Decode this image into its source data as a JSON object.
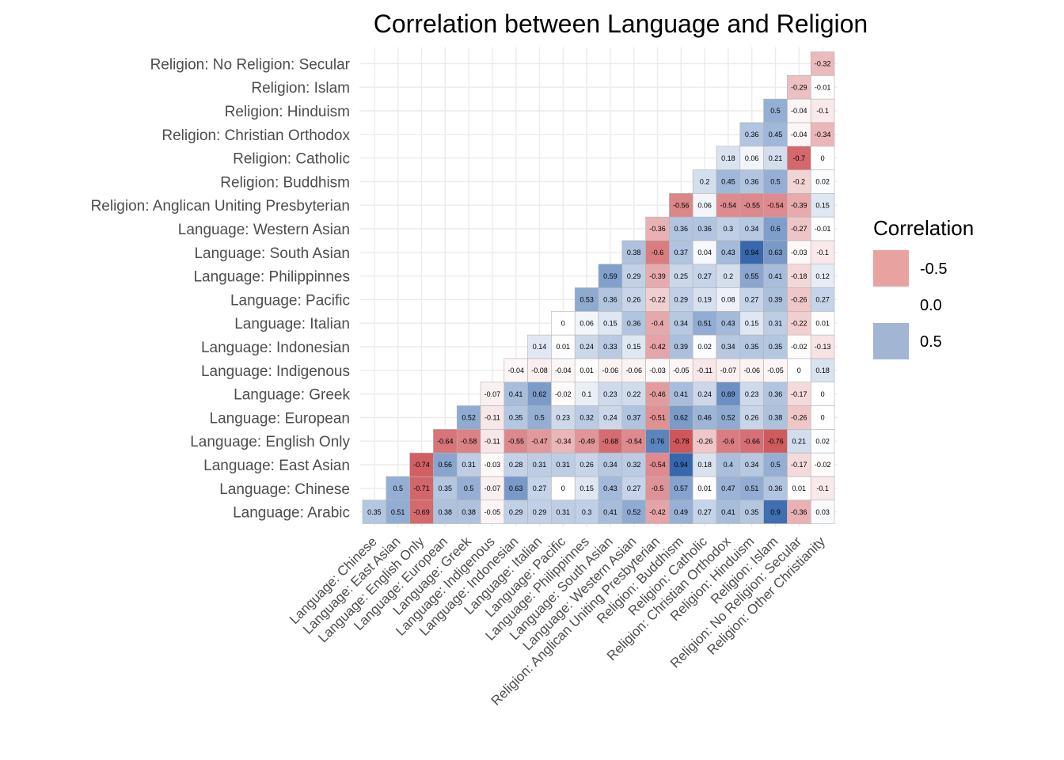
{
  "chart_data": {
    "type": "heatmap",
    "title": "Correlation between Language and Religion",
    "x_labels": [
      "Language: Chinese",
      "Language: East Asian",
      "Language: English Only",
      "Language: European",
      "Language: Greek",
      "Language: Indigenous",
      "Language: Indonesian",
      "Language: Italian",
      "Language: Pacific",
      "Language: Philippinnes",
      "Language: South Asian",
      "Language: Western Asian",
      "Religion: Anglican Uniting Presbyterian",
      "Religion: Buddhism",
      "Religion: Catholic",
      "Religion: Christian Orthodox",
      "Religion: Hinduism",
      "Religion: Islam",
      "Religion: No Religion: Secular",
      "Religion: Other Christianity"
    ],
    "y_labels": [
      "Language: Arabic",
      "Language: Chinese",
      "Language: East Asian",
      "Language: English Only",
      "Language: European",
      "Language: Greek",
      "Language: Indigenous",
      "Language: Indonesian",
      "Language: Italian",
      "Language: Pacific",
      "Language: Philippinnes",
      "Language: South Asian",
      "Language: Western Asian",
      "Religion: Anglican Uniting Presbyterian",
      "Religion: Buddhism",
      "Religion: Catholic",
      "Religion: Christian Orthodox",
      "Religion: Hinduism",
      "Religion: Islam",
      "Religion: No Religion: Secular"
    ],
    "values": [
      [
        0.35,
        0.51,
        -0.69,
        0.38,
        0.38,
        -0.05,
        0.29,
        0.29,
        0.31,
        0.3,
        0.41,
        0.52,
        -0.42,
        0.49,
        0.27,
        0.41,
        0.35,
        0.9,
        -0.36,
        0.03
      ],
      [
        null,
        0.5,
        -0.71,
        0.35,
        0.5,
        -0.07,
        0.63,
        0.27,
        0,
        0.15,
        0.43,
        0.27,
        -0.5,
        0.57,
        0.01,
        0.47,
        0.51,
        0.36,
        0.01,
        -0.1
      ],
      [
        null,
        null,
        -0.74,
        0.56,
        0.31,
        -0.03,
        0.28,
        0.31,
        0.31,
        0.26,
        0.34,
        0.32,
        -0.54,
        0.94,
        0.18,
        0.4,
        0.34,
        0.5,
        -0.17,
        -0.02
      ],
      [
        null,
        null,
        null,
        -0.64,
        -0.58,
        -0.11,
        -0.55,
        -0.47,
        -0.34,
        -0.49,
        -0.68,
        -0.54,
        0.76,
        -0.78,
        -0.26,
        -0.6,
        -0.66,
        -0.76,
        0.21,
        0.02
      ],
      [
        null,
        null,
        null,
        null,
        0.52,
        -0.11,
        0.35,
        0.5,
        0.23,
        0.32,
        0.24,
        0.37,
        -0.51,
        0.62,
        0.46,
        0.52,
        0.26,
        0.38,
        -0.26,
        0
      ],
      [
        null,
        null,
        null,
        null,
        null,
        -0.07,
        0.41,
        0.62,
        -0.02,
        0.1,
        0.23,
        0.22,
        -0.46,
        0.41,
        0.24,
        0.69,
        0.23,
        0.36,
        -0.17,
        0
      ],
      [
        null,
        null,
        null,
        null,
        null,
        null,
        -0.04,
        -0.08,
        -0.04,
        0.01,
        -0.06,
        -0.06,
        -0.03,
        -0.05,
        -0.11,
        -0.07,
        -0.06,
        -0.05,
        0,
        0.18
      ],
      [
        null,
        null,
        null,
        null,
        null,
        null,
        null,
        0.14,
        0.01,
        0.24,
        0.33,
        0.15,
        -0.42,
        0.39,
        0.02,
        0.34,
        0.35,
        0.35,
        -0.02,
        -0.13
      ],
      [
        null,
        null,
        null,
        null,
        null,
        null,
        null,
        null,
        0,
        0.06,
        0.15,
        0.36,
        -0.4,
        0.34,
        0.51,
        0.43,
        0.15,
        0.31,
        -0.22,
        0.01
      ],
      [
        null,
        null,
        null,
        null,
        null,
        null,
        null,
        null,
        null,
        0.53,
        0.36,
        0.26,
        -0.22,
        0.29,
        0.19,
        0.08,
        0.27,
        0.39,
        -0.26,
        0.27
      ],
      [
        null,
        null,
        null,
        null,
        null,
        null,
        null,
        null,
        null,
        null,
        0.59,
        0.29,
        -0.39,
        0.25,
        0.27,
        0.2,
        0.55,
        0.41,
        -0.18,
        0.12
      ],
      [
        null,
        null,
        null,
        null,
        null,
        null,
        null,
        null,
        null,
        null,
        null,
        0.38,
        -0.6,
        0.37,
        0.04,
        0.43,
        0.94,
        0.63,
        -0.03,
        -0.1
      ],
      [
        null,
        null,
        null,
        null,
        null,
        null,
        null,
        null,
        null,
        null,
        null,
        null,
        -0.36,
        0.36,
        0.36,
        0.3,
        0.34,
        0.6,
        -0.27,
        -0.01
      ],
      [
        null,
        null,
        null,
        null,
        null,
        null,
        null,
        null,
        null,
        null,
        null,
        null,
        null,
        -0.56,
        0.06,
        -0.54,
        -0.55,
        -0.54,
        -0.39,
        0.15
      ],
      [
        null,
        null,
        null,
        null,
        null,
        null,
        null,
        null,
        null,
        null,
        null,
        null,
        null,
        null,
        0.2,
        0.45,
        0.36,
        0.5,
        -0.2,
        0.02
      ],
      [
        null,
        null,
        null,
        null,
        null,
        null,
        null,
        null,
        null,
        null,
        null,
        null,
        null,
        null,
        null,
        0.18,
        0.06,
        0.21,
        -0.7,
        0
      ],
      [
        null,
        null,
        null,
        null,
        null,
        null,
        null,
        null,
        null,
        null,
        null,
        null,
        null,
        null,
        null,
        null,
        0.36,
        0.45,
        -0.04,
        -0.34
      ],
      [
        null,
        null,
        null,
        null,
        null,
        null,
        null,
        null,
        null,
        null,
        null,
        null,
        null,
        null,
        null,
        null,
        null,
        0.5,
        -0.04,
        -0.1
      ],
      [
        null,
        null,
        null,
        null,
        null,
        null,
        null,
        null,
        null,
        null,
        null,
        null,
        null,
        null,
        null,
        null,
        null,
        null,
        -0.29,
        -0.01
      ],
      [
        null,
        null,
        null,
        null,
        null,
        null,
        null,
        null,
        null,
        null,
        null,
        null,
        null,
        null,
        null,
        null,
        null,
        null,
        null,
        -0.32
      ]
    ],
    "legend": {
      "title": "Correlation",
      "position": "right",
      "items": [
        {
          "label": "-0.5",
          "color": "#e8a29f"
        },
        {
          "label": "0.0",
          "color": "#ffffff"
        },
        {
          "label": "0.5",
          "color": "#a2b5d3"
        }
      ]
    },
    "colors": {
      "low": "#c1272d",
      "mid": "#ffffff",
      "high": "#2a5ea8",
      "grid": "#ebebeb",
      "tile_border": "#b3b3b3"
    },
    "limits": [
      -1,
      1
    ],
    "grid": true
  }
}
